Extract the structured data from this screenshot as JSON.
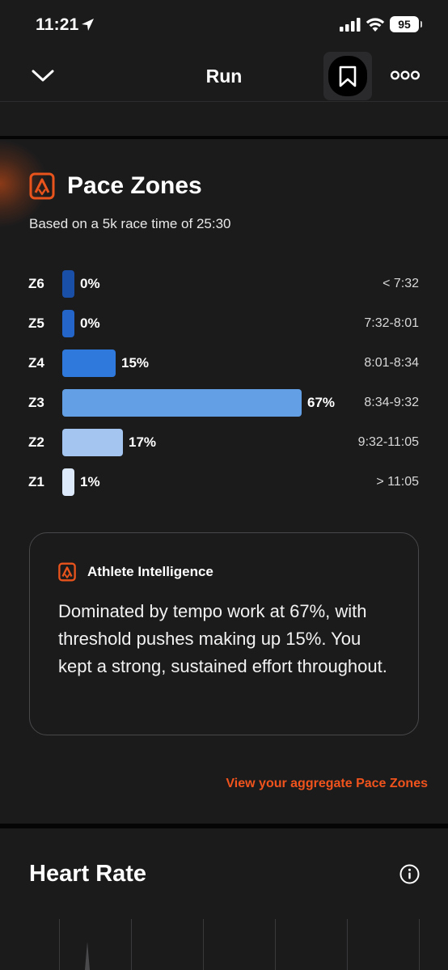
{
  "status_bar": {
    "time": "11:21",
    "battery": "95"
  },
  "nav": {
    "title": "Run"
  },
  "pace_zones": {
    "title": "Pace Zones",
    "subtitle": "Based on a 5k race time of 25:30",
    "zones": [
      {
        "label": "Z6",
        "percent_text": "0%",
        "percent": 0,
        "range": "< 7:32",
        "color": "#1a4fa8"
      },
      {
        "label": "Z5",
        "percent_text": "0%",
        "percent": 0,
        "range": "7:32-8:01",
        "color": "#2365c8"
      },
      {
        "label": "Z4",
        "percent_text": "15%",
        "percent": 15,
        "range": "8:01-8:34",
        "color": "#2f79dc"
      },
      {
        "label": "Z3",
        "percent_text": "67%",
        "percent": 67,
        "range": "8:34-9:32",
        "color": "#639fe4"
      },
      {
        "label": "Z2",
        "percent_text": "17%",
        "percent": 17,
        "range": "9:32-11:05",
        "color": "#a3c5f0"
      },
      {
        "label": "Z1",
        "percent_text": "1%",
        "percent": 1,
        "range": "> 11:05",
        "color": "#dce9fb"
      }
    ],
    "intelligence": {
      "heading": "Athlete Intelligence",
      "text": "Dominated by tempo work at 67%, with threshold pushes making up 15%. You kept a strong, sustained effort throughout."
    },
    "aggregate_link": "View your aggregate Pace Zones"
  },
  "heart_rate": {
    "title": "Heart Rate"
  },
  "colors": {
    "accent": "#f0531c",
    "background": "#1b1b1c"
  },
  "icons": {
    "nav_back": "chevron-down-icon",
    "bookmark": "bookmark-icon",
    "more": "more-icon",
    "info": "info-icon",
    "strava": "strava-logo-icon"
  }
}
